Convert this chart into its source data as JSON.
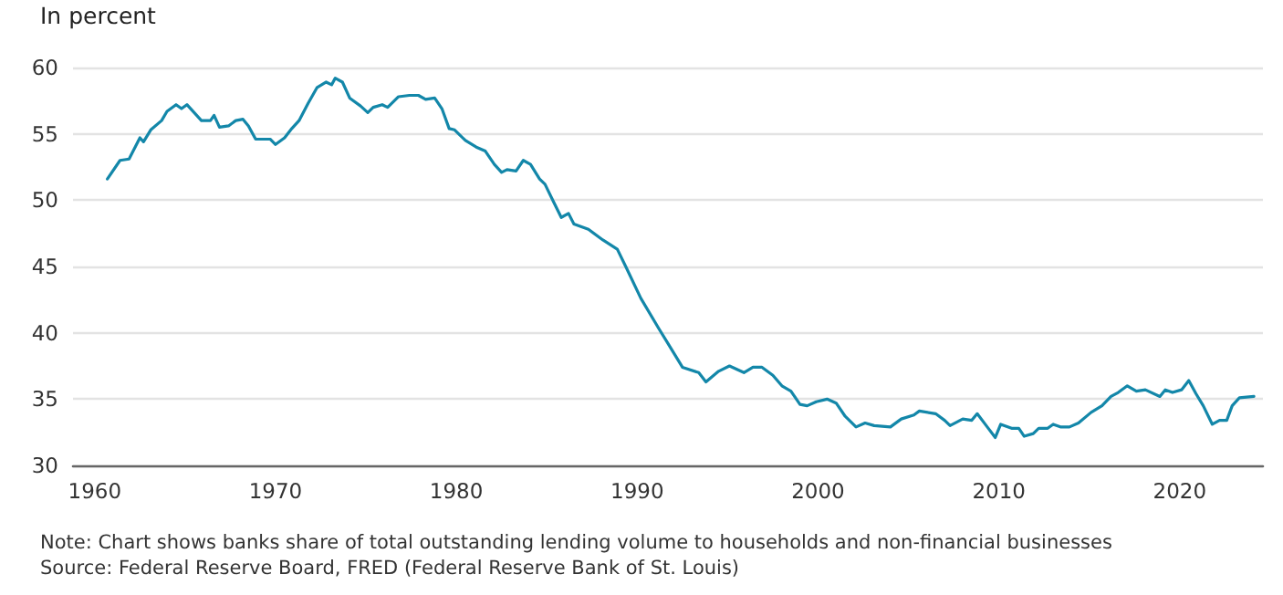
{
  "chart_data": {
    "type": "line",
    "ylabel": "In percent",
    "annotations": [
      "Note: Chart shows banks share of total outstanding lending volume to households and non-financial businesses",
      "Source: Federal Reserve Board, FRED (Federal Reserve Bank of St. Louis)"
    ],
    "x": [
      1960.7,
      1961.4,
      1961.9,
      1962.5,
      1962.7,
      1963.1,
      1963.7,
      1964.0,
      1964.5,
      1964.8,
      1965.1,
      1965.5,
      1965.9,
      1966.4,
      1966.6,
      1966.9,
      1967.4,
      1967.8,
      1968.2,
      1968.5,
      1968.9,
      1969.7,
      1970.0,
      1970.5,
      1970.9,
      1971.3,
      1971.8,
      1972.3,
      1972.8,
      1973.1,
      1973.3,
      1973.7,
      1974.1,
      1974.7,
      1975.1,
      1975.4,
      1975.9,
      1976.2,
      1976.8,
      1977.4,
      1977.9,
      1978.3,
      1978.8,
      1979.2,
      1979.6,
      1979.9,
      1980.5,
      1981.1,
      1981.6,
      1982.1,
      1982.5,
      1982.8,
      1983.3,
      1983.7,
      1984.1,
      1984.6,
      1984.9,
      1985.4,
      1985.8,
      1986.2,
      1986.5,
      1987.3,
      1988.1,
      1988.9,
      1989.4,
      1990.2,
      1991.2,
      1991.7,
      1992.5,
      1993.4,
      1993.8,
      1994.5,
      1995.1,
      1995.9,
      1996.4,
      1996.9,
      1997.5,
      1998.0,
      1998.5,
      1999.0,
      1999.4,
      1999.9,
      2000.5,
      2001.0,
      2001.5,
      2002.1,
      2002.6,
      2003.1,
      2004.0,
      2004.6,
      2005.3,
      2005.6,
      2006.5,
      2007.0,
      2007.3,
      2008.0,
      2008.5,
      2008.8,
      2009.3,
      2009.8,
      2010.1,
      2010.7,
      2011.1,
      2011.4,
      2011.9,
      2012.2,
      2012.7,
      2013.0,
      2013.4,
      2013.9,
      2014.4,
      2015.1,
      2015.7,
      2016.2,
      2016.6,
      2017.1,
      2017.6,
      2018.1,
      2018.9,
      2019.2,
      2019.6,
      2020.1,
      2020.5,
      2020.9,
      2021.3,
      2021.8,
      2022.2,
      2022.6,
      2022.9,
      2023.3,
      2024.1
    ],
    "series": [
      {
        "color": "#1387a9",
        "values": [
          51.6,
          53.0,
          53.1,
          54.7,
          54.4,
          55.3,
          56.0,
          56.7,
          57.2,
          56.9,
          57.2,
          56.6,
          56.0,
          56.0,
          56.4,
          55.5,
          55.6,
          56.0,
          56.1,
          55.6,
          54.6,
          54.6,
          54.2,
          54.7,
          55.4,
          56.0,
          57.3,
          58.5,
          58.9,
          58.7,
          59.2,
          58.9,
          57.7,
          57.1,
          56.6,
          57.0,
          57.2,
          57.0,
          57.8,
          57.9,
          57.9,
          57.6,
          57.7,
          56.9,
          55.4,
          55.3,
          54.5,
          54.0,
          53.7,
          52.7,
          52.1,
          52.3,
          52.2,
          53.0,
          52.7,
          51.6,
          51.2,
          49.8,
          48.7,
          49.0,
          48.2,
          47.8,
          47.0,
          46.3,
          44.9,
          42.6,
          40.3,
          39.2,
          37.4,
          37.0,
          36.3,
          37.1,
          37.5,
          37.0,
          37.4,
          37.4,
          36.8,
          36.0,
          35.6,
          34.6,
          34.5,
          34.8,
          35.0,
          34.7,
          33.7,
          32.9,
          33.2,
          33.0,
          32.9,
          33.5,
          33.8,
          34.1,
          33.9,
          33.4,
          33.0,
          33.5,
          33.4,
          33.9,
          33.0,
          32.1,
          33.1,
          32.8,
          32.8,
          32.2,
          32.4,
          32.8,
          32.8,
          33.1,
          32.9,
          32.9,
          33.2,
          34.0,
          34.5,
          35.2,
          35.5,
          36.0,
          35.6,
          35.7,
          35.2,
          35.7,
          35.5,
          35.7,
          36.4,
          35.4,
          34.5,
          33.1,
          33.4,
          33.4,
          34.5,
          35.1,
          35.2
        ]
      }
    ],
    "xlim": [
      1958.8,
      2024.6
    ],
    "xticks": [
      1960,
      1970,
      1980,
      1990,
      2000,
      2010,
      2020
    ],
    "ylim": [
      30,
      60
    ],
    "yticks": [
      30,
      35,
      40,
      45,
      50,
      55,
      60
    ],
    "grid": "y",
    "marker": "none",
    "line_style": "solid"
  }
}
